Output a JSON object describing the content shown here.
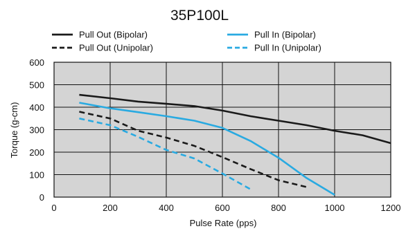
{
  "chart_data": {
    "type": "line",
    "title": "35P100L",
    "xlabel": "Pulse Rate (pps)",
    "ylabel": "Torque (g-cm)",
    "xlim": [
      0,
      1200
    ],
    "ylim": [
      0,
      600
    ],
    "xticks": [
      "0",
      "200",
      "400",
      "600",
      "800",
      "1000",
      "1200"
    ],
    "yticks": [
      "0",
      "100",
      "200",
      "300",
      "400",
      "500",
      "600"
    ],
    "grid": true,
    "legend_position": "top",
    "series": [
      {
        "name": "Pull Out (Bipolar)",
        "color": "#1a1a1a",
        "style": "solid",
        "x": [
          90,
          200,
          300,
          400,
          500,
          600,
          700,
          800,
          900,
          1000,
          1100,
          1200
        ],
        "y": [
          455,
          440,
          425,
          415,
          405,
          385,
          360,
          340,
          320,
          295,
          275,
          240
        ]
      },
      {
        "name": "Pull Out (Unipolar)",
        "color": "#1a1a1a",
        "style": "dashed",
        "x": [
          90,
          200,
          300,
          400,
          500,
          600,
          700,
          800,
          900
        ],
        "y": [
          380,
          350,
          295,
          265,
          228,
          178,
          125,
          75,
          45
        ]
      },
      {
        "name": "Pull In (Bipolar)",
        "color": "#29aae1",
        "style": "solid",
        "x": [
          90,
          200,
          300,
          400,
          500,
          600,
          700,
          800,
          900,
          1000
        ],
        "y": [
          420,
          395,
          378,
          360,
          340,
          308,
          250,
          175,
          85,
          10
        ]
      },
      {
        "name": "Pull In (Unipolar)",
        "color": "#29aae1",
        "style": "dashed",
        "x": [
          90,
          200,
          300,
          400,
          500,
          600,
          700
        ],
        "y": [
          350,
          320,
          268,
          210,
          172,
          105,
          35
        ]
      }
    ]
  }
}
